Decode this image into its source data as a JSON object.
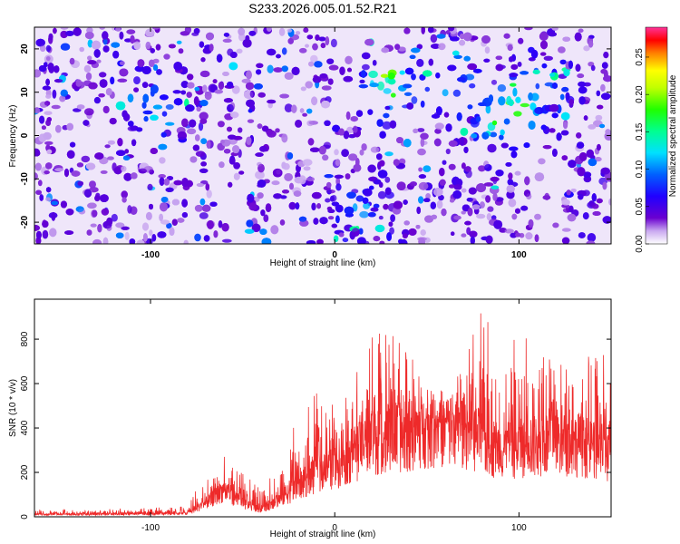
{
  "title": "S233.2026.005.01.52.R21",
  "chart_data": [
    {
      "type": "heatmap",
      "xlabel": "Height of straight line (km)",
      "ylabel": "Frequency (Hz)",
      "xlim": [
        -163,
        150
      ],
      "ylim": [
        -25,
        25
      ],
      "xticks": [
        "-100",
        "0",
        "100"
      ],
      "xtick_values": [
        -100,
        0,
        100
      ],
      "yticks": [
        "20",
        "10",
        "0",
        "-10",
        "-20"
      ],
      "ytick_values": [
        20,
        10,
        0,
        -10,
        -20
      ],
      "colorbar": {
        "label": "Normalized spectral amplitude",
        "range": [
          0,
          0.29
        ],
        "ticks": [
          "0.00",
          "0.05",
          "0.10",
          "0.15",
          "0.20",
          "0.25"
        ],
        "tick_values": [
          0,
          0.05,
          0.1,
          0.15,
          0.2,
          0.25
        ],
        "colors": [
          "#ffffff",
          "#6a00d0",
          "#0000ff",
          "#00ffff",
          "#00ff00",
          "#ffff00",
          "#ff0000",
          "#ff3399"
        ]
      },
      "description_values": {
        "background_level": 0.03,
        "hotspots": [
          {
            "x": 30,
            "y": 10,
            "value": 0.16
          },
          {
            "x": 93,
            "y": 4,
            "value": 0.19
          },
          {
            "x": 110,
            "y": 11,
            "value": 0.15
          },
          {
            "x": 62,
            "y": 11,
            "value": 0.12
          },
          {
            "x": -95,
            "y": 6,
            "value": 0.11
          },
          {
            "x": 15,
            "y": -18,
            "value": 0.1
          }
        ]
      }
    },
    {
      "type": "line",
      "xlabel": "Height of straight line (km)",
      "ylabel": "SNR (10 * v/v)",
      "xlim": [
        -163,
        150
      ],
      "ylim": [
        0,
        980
      ],
      "xticks": [
        "-100",
        "0",
        "100"
      ],
      "xtick_values": [
        -100,
        0,
        100
      ],
      "yticks": [
        "0",
        "200",
        "400",
        "600",
        "800"
      ],
      "ytick_values": [
        0,
        200,
        400,
        600,
        800
      ],
      "color": "#ee2a2a",
      "envelope": {
        "x": [
          -163,
          -100,
          -80,
          -70,
          -60,
          -50,
          -40,
          -30,
          -20,
          -10,
          0,
          10,
          20,
          30,
          40,
          50,
          60,
          70,
          80,
          90,
          100,
          110,
          120,
          130,
          140,
          150
        ],
        "base": [
          10,
          12,
          15,
          60,
          120,
          60,
          30,
          80,
          130,
          190,
          220,
          280,
          330,
          350,
          360,
          390,
          400,
          390,
          330,
          300,
          310,
          320,
          320,
          330,
          300,
          260
        ],
        "peak": [
          30,
          40,
          50,
          200,
          290,
          200,
          120,
          300,
          450,
          560,
          500,
          600,
          900,
          870,
          760,
          600,
          520,
          700,
          950,
          900,
          970,
          800,
          700,
          660,
          740,
          800
        ]
      }
    }
  ]
}
